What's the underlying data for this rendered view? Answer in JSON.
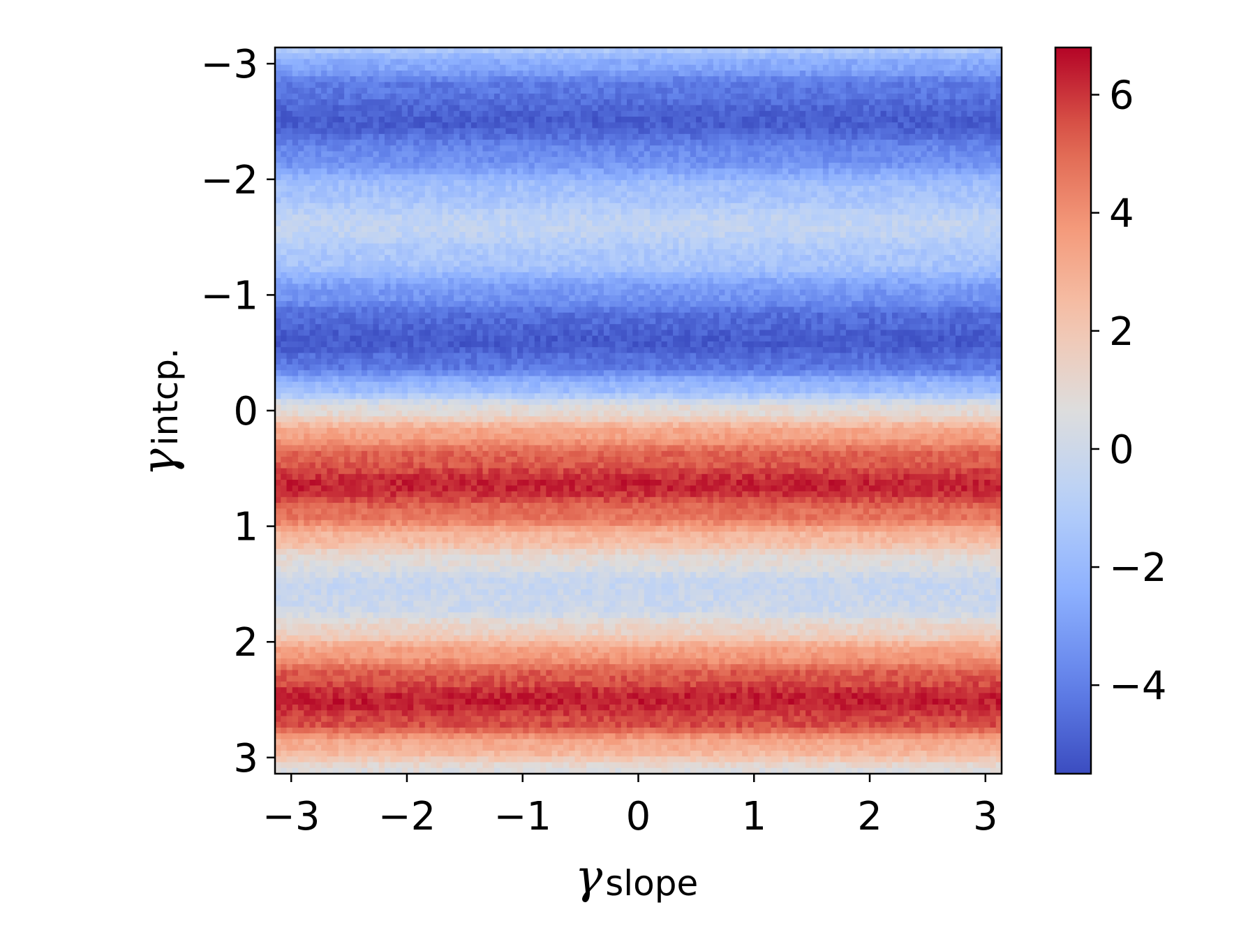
{
  "chart_data": {
    "type": "heatmap",
    "title": "",
    "xlabel": {
      "symbol": "γ",
      "subscript": "slope"
    },
    "ylabel": {
      "symbol": "γ",
      "subscript": "intcp."
    },
    "xlim": [
      -3.14,
      3.14
    ],
    "ylim": [
      3.14,
      -3.14
    ],
    "y_inverted": true,
    "x_ticks": [
      -3,
      -2,
      -1,
      0,
      1,
      2,
      3
    ],
    "x_tick_labels": [
      "−3",
      "−2",
      "−1",
      "0",
      "1",
      "2",
      "3"
    ],
    "y_ticks": [
      -3,
      -2,
      -1,
      0,
      1,
      2,
      3
    ],
    "y_tick_labels": [
      "−3",
      "−2",
      "−1",
      "0",
      "1",
      "2",
      "3"
    ],
    "grid_resolution": [
      126,
      126
    ],
    "value_profile_along_y": {
      "description_unit": "heatmap value vs intercept (constant along slope, with small noise)",
      "y": [
        -3.14,
        -3.0,
        -2.8,
        -2.5,
        -2.2,
        -1.9,
        -1.6,
        -1.3,
        -1.0,
        -0.8,
        -0.6,
        -0.4,
        -0.2,
        0.0,
        0.2,
        0.4,
        0.65,
        0.9,
        1.1,
        1.3,
        1.5,
        1.7,
        1.9,
        2.1,
        2.3,
        2.5,
        2.7,
        2.9,
        3.14
      ],
      "value": [
        -1.2,
        -2.6,
        -4.2,
        -5.0,
        -3.6,
        -1.6,
        -0.5,
        -1.4,
        -3.3,
        -4.6,
        -5.1,
        -4.3,
        -2.0,
        0.9,
        3.4,
        5.2,
        6.3,
        4.8,
        2.6,
        0.8,
        -0.3,
        -0.1,
        1.4,
        3.6,
        5.4,
        6.4,
        5.6,
        3.0,
        0.6
      ]
    },
    "noise_amplitude": 0.45,
    "colorbar": {
      "colormap": "coolwarm",
      "range": [
        -5.5,
        6.8
      ],
      "ticks": [
        -4,
        -2,
        0,
        2,
        4,
        6
      ],
      "tick_labels": [
        "−4",
        "−2",
        "0",
        "2",
        "4",
        "6"
      ]
    }
  }
}
